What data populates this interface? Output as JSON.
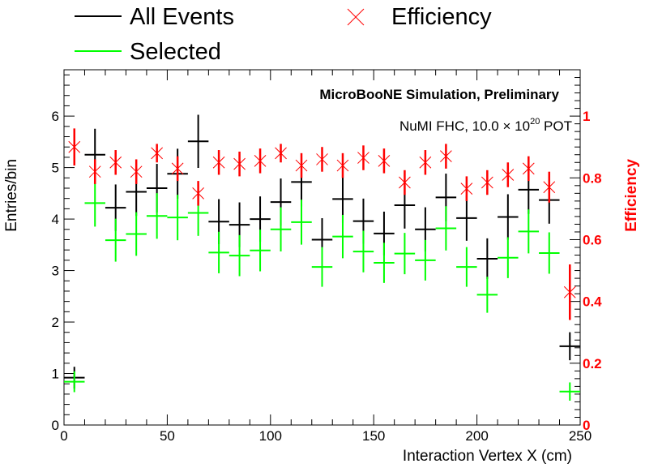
{
  "chart_data": {
    "type": "scatter",
    "title": "",
    "xlabel": "Interaction Vertex X (cm)",
    "ylabel": "Entries/bin",
    "y2label": "Efficiency",
    "xlim": [
      0,
      250
    ],
    "ylim": [
      0,
      6.9
    ],
    "y2lim": [
      0,
      1.15
    ],
    "x_ticks": [
      "0",
      "50",
      "100",
      "150",
      "200",
      "250"
    ],
    "y_ticks": [
      "0",
      "1",
      "2",
      "3",
      "4",
      "5",
      "6"
    ],
    "y2_ticks": [
      "0",
      "0.2",
      "0.4",
      "0.6",
      "0.8",
      "1"
    ],
    "legend_position": "top",
    "annotations": {
      "line1": "MicroBooNE Simulation, Preliminary",
      "line2_pre": "NuMI FHC, 10.0",
      "line2_times": "×",
      "line2_base": "10",
      "line2_exp": "20",
      "line2_post": " POT"
    },
    "bin_width": 10,
    "x": [
      5,
      15,
      25,
      35,
      45,
      55,
      65,
      75,
      85,
      95,
      105,
      115,
      125,
      135,
      145,
      155,
      165,
      175,
      185,
      195,
      205,
      215,
      225,
      235,
      245
    ],
    "series": [
      {
        "name": "All Events",
        "color": "#000000",
        "axis": "left",
        "marker": "cross",
        "values": [
          0.92,
          5.25,
          4.22,
          4.53,
          4.6,
          4.88,
          5.51,
          3.95,
          3.89,
          4.0,
          4.33,
          4.72,
          3.6,
          4.39,
          3.96,
          3.72,
          4.27,
          3.8,
          4.42,
          4.02,
          3.23,
          4.04,
          4.57,
          4.37,
          1.53
        ]
      },
      {
        "name": "Selected",
        "color": "#00ff00",
        "axis": "left",
        "marker": "cross",
        "values": [
          0.84,
          4.31,
          3.59,
          3.71,
          4.06,
          4.03,
          4.12,
          3.35,
          3.29,
          3.39,
          3.8,
          3.94,
          3.07,
          3.66,
          3.37,
          3.15,
          3.33,
          3.2,
          3.82,
          3.07,
          2.53,
          3.25,
          3.76,
          3.34,
          0.65
        ]
      },
      {
        "name": "Efficiency",
        "color": "#ff0000",
        "axis": "right",
        "marker": "x",
        "values": [
          0.9,
          0.82,
          0.85,
          0.82,
          0.88,
          0.83,
          0.75,
          0.85,
          0.845,
          0.855,
          0.88,
          0.84,
          0.86,
          0.84,
          0.865,
          0.855,
          0.785,
          0.85,
          0.87,
          0.765,
          0.785,
          0.81,
          0.83,
          0.77,
          0.43
        ],
        "errors": [
          0.06,
          0.04,
          0.04,
          0.04,
          0.03,
          0.04,
          0.04,
          0.04,
          0.04,
          0.04,
          0.03,
          0.04,
          0.04,
          0.04,
          0.04,
          0.04,
          0.04,
          0.04,
          0.04,
          0.04,
          0.04,
          0.04,
          0.04,
          0.05,
          0.09
        ]
      }
    ]
  }
}
